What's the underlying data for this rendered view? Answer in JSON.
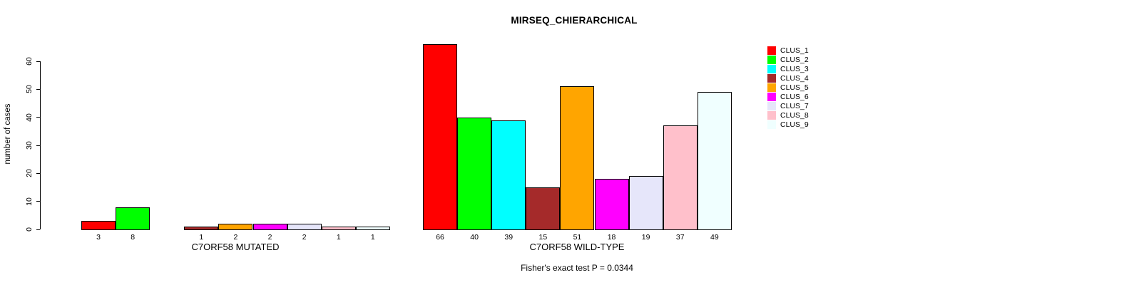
{
  "chart_data": {
    "type": "bar",
    "title": "MIRSEQ_CHIERARCHICAL",
    "ylabel": "number of cases",
    "ylim": [
      0,
      60
    ],
    "yticks": [
      0,
      10,
      20,
      30,
      40,
      50,
      60
    ],
    "grid": false,
    "legend_position": "right",
    "categories": [
      "C7ORF58 MUTATED",
      "C7ORF58 WILD-TYPE"
    ],
    "series": [
      {
        "name": "CLUS_1",
        "color": "#FF0000",
        "values": [
          3,
          66
        ]
      },
      {
        "name": "CLUS_2",
        "color": "#00FF00",
        "values": [
          8,
          40
        ]
      },
      {
        "name": "CLUS_3",
        "color": "#00FFFF",
        "values": [
          0,
          39
        ]
      },
      {
        "name": "CLUS_4",
        "color": "#A52A2A",
        "values": [
          1,
          15
        ]
      },
      {
        "name": "CLUS_5",
        "color": "#FFA500",
        "values": [
          2,
          51
        ]
      },
      {
        "name": "CLUS_6",
        "color": "#FF00FF",
        "values": [
          2,
          18
        ]
      },
      {
        "name": "CLUS_7",
        "color": "#E6E6FA",
        "values": [
          2,
          19
        ]
      },
      {
        "name": "CLUS_8",
        "color": "#FFC0CB",
        "values": [
          1,
          37
        ]
      },
      {
        "name": "CLUS_9",
        "color": "#F0FFFF",
        "values": [
          1,
          49
        ]
      }
    ],
    "bar_value_labels": {
      "C7ORF58 MUTATED": [
        3,
        8,
        null,
        1,
        2,
        2,
        2,
        1,
        1
      ],
      "C7ORF58 WILD-TYPE": [
        66,
        40,
        39,
        15,
        51,
        18,
        19,
        37,
        49
      ]
    },
    "annotation": "Fisher's exact test P = 0.0344"
  }
}
